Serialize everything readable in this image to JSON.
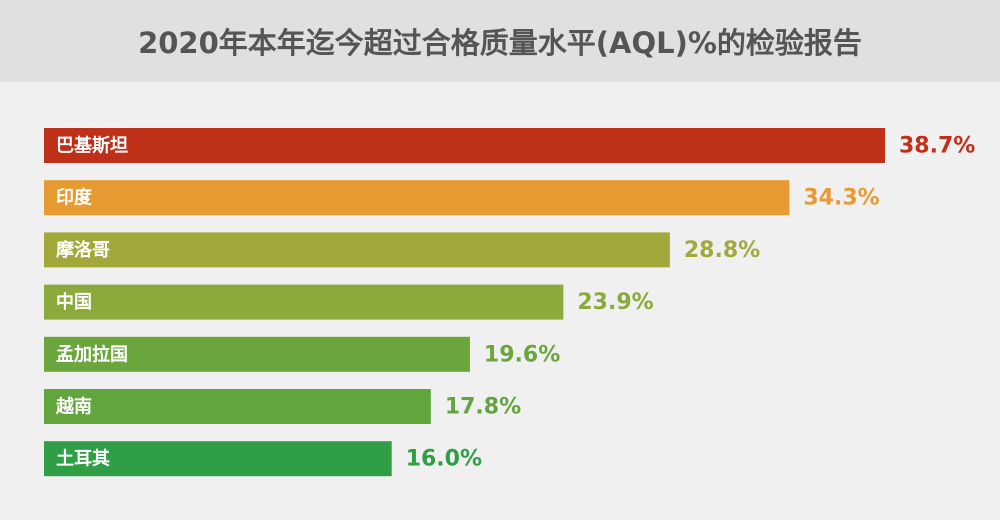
{
  "chart_data": {
    "type": "hbar",
    "title": "2020年本年迄今超过合格质量水平(AQL)%的检验报告",
    "categories": [
      "巴基斯坦",
      "印度",
      "摩洛哥",
      "中国",
      "孟加拉国",
      "越南",
      "土耳其"
    ],
    "values": [
      38.7,
      34.3,
      28.8,
      23.9,
      19.6,
      17.8,
      16.0
    ],
    "value_labels": [
      "38.7%",
      "34.3%",
      "28.8%",
      "23.9%",
      "19.6%",
      "17.8%",
      "16.0%"
    ],
    "colors": [
      "#bf3019",
      "#e89a32",
      "#a3a83a",
      "#8aaa3c",
      "#6ba63c",
      "#62a53d",
      "#2f9e45"
    ]
  }
}
